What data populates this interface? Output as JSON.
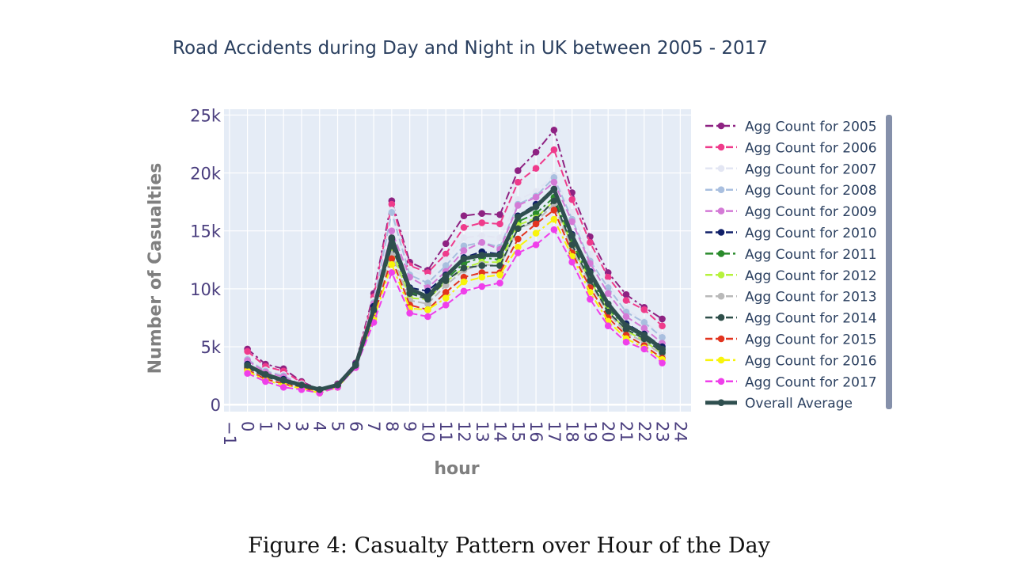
{
  "figure_caption": "Figure 4: Casualty Pattern over Hour of the Day",
  "chart_data": {
    "type": "line",
    "title": "Road Accidents during Day and Night in UK between 2005 - 2017",
    "xlabel": "hour",
    "ylabel": "Number of Casualties",
    "xlim": [
      -1.3,
      24.6
    ],
    "ylim": [
      -600,
      25500
    ],
    "x_ticks": [
      -1,
      0,
      1,
      2,
      3,
      4,
      5,
      6,
      7,
      8,
      9,
      10,
      11,
      12,
      13,
      14,
      15,
      16,
      17,
      18,
      19,
      20,
      21,
      22,
      23,
      24
    ],
    "x_tick_labels": [
      "−1",
      "0",
      "1",
      "2",
      "3",
      "4",
      "5",
      "6",
      "7",
      "8",
      "9",
      "10",
      "11",
      "12",
      "13",
      "14",
      "15",
      "16",
      "17",
      "18",
      "19",
      "20",
      "21",
      "22",
      "23",
      "24"
    ],
    "y_ticks": [
      0,
      5000,
      10000,
      15000,
      20000,
      25000
    ],
    "y_tick_labels": [
      "0",
      "5k",
      "10k",
      "15k",
      "20k",
      "25k"
    ],
    "grid": true,
    "plot_background": "#e5ecf6",
    "legend_position": "right",
    "x": [
      0,
      1,
      2,
      3,
      4,
      5,
      6,
      7,
      8,
      9,
      10,
      11,
      12,
      13,
      14,
      15,
      16,
      17,
      18,
      19,
      20,
      21,
      22,
      23
    ],
    "series": [
      {
        "name": "Agg Count for 2005",
        "color": "#8e2282",
        "dash": "dashdot",
        "values": [
          4800,
          3500,
          3100,
          2000,
          1300,
          1800,
          3600,
          9600,
          17600,
          12300,
          11600,
          13900,
          16300,
          16500,
          16400,
          20200,
          21800,
          23700,
          18300,
          14500,
          11400,
          9500,
          8400,
          7400
        ]
      },
      {
        "name": "Agg Count for 2006",
        "color": "#ef3b8b",
        "dash": "dash",
        "values": [
          4600,
          3300,
          2900,
          1900,
          1300,
          1700,
          3500,
          9300,
          17300,
          12000,
          11400,
          13000,
          15300,
          15700,
          15600,
          19200,
          20400,
          22000,
          17700,
          14000,
          11000,
          9000,
          8200,
          6800
        ]
      },
      {
        "name": "Agg Count for 2007",
        "color": "#e3e6f3",
        "dash": "dash",
        "values": [
          4000,
          3000,
          2600,
          1800,
          1300,
          1700,
          3500,
          9000,
          16800,
          11700,
          11000,
          12500,
          14400,
          14600,
          14400,
          17700,
          18400,
          19800,
          16600,
          13000,
          10500,
          8300,
          7200,
          6000
        ]
      },
      {
        "name": "Agg Count for 2008",
        "color": "#a9bfdf",
        "dash": "dash",
        "values": [
          3900,
          2900,
          2500,
          1700,
          1300,
          1700,
          3500,
          8800,
          16600,
          11200,
          10500,
          12000,
          13700,
          14000,
          13600,
          17300,
          18000,
          19600,
          16000,
          12400,
          10100,
          8000,
          7100,
          5800
        ]
      },
      {
        "name": "Agg Count for 2009",
        "color": "#d47ad6",
        "dash": "dash",
        "values": [
          3800,
          2800,
          2400,
          1700,
          1200,
          1700,
          3500,
          8700,
          15000,
          11000,
          10100,
          11500,
          13300,
          14000,
          13400,
          17200,
          17900,
          19200,
          15800,
          12200,
          9600,
          7600,
          6600,
          5300
        ]
      },
      {
        "name": "Agg Count for 2010",
        "color": "#102068",
        "dash": "dash",
        "values": [
          3500,
          2600,
          2200,
          1600,
          1200,
          1600,
          3500,
          8500,
          14300,
          10100,
          9800,
          11200,
          12700,
          13200,
          13000,
          16300,
          17300,
          18600,
          14700,
          11500,
          8600,
          7000,
          6100,
          5000
        ]
      },
      {
        "name": "Agg Count for 2011",
        "color": "#2a8b2c",
        "dash": "dashdot",
        "values": [
          3300,
          2500,
          2100,
          1600,
          1200,
          1600,
          3400,
          8200,
          13800,
          9700,
          9300,
          10800,
          12200,
          12700,
          12500,
          15800,
          16500,
          17900,
          14000,
          11000,
          8300,
          6700,
          5800,
          4700
        ]
      },
      {
        "name": "Agg Count for 2012",
        "color": "#b6f23c",
        "dash": "dash",
        "values": [
          3200,
          2400,
          2000,
          1500,
          1100,
          1600,
          3400,
          8000,
          13400,
          9200,
          9100,
          10600,
          11800,
          12300,
          12300,
          15500,
          16100,
          17600,
          13700,
          10700,
          8100,
          6400,
          5500,
          4400
        ]
      },
      {
        "name": "Agg Count for 2013",
        "color": "#b9b9b9",
        "dash": "dash",
        "values": [
          3100,
          2300,
          1900,
          1500,
          1100,
          1500,
          3300,
          7800,
          13000,
          9000,
          8700,
          10300,
          11600,
          12100,
          12000,
          15200,
          15800,
          17300,
          13400,
          10500,
          7900,
          6200,
          5400,
          4300
        ]
      },
      {
        "name": "Agg Count for 2014",
        "color": "#2f4f4a",
        "dash": "dash",
        "values": [
          3200,
          2400,
          2000,
          1500,
          1200,
          1600,
          3400,
          8000,
          13700,
          9600,
          9100,
          10700,
          11800,
          12000,
          12000,
          15200,
          16000,
          17600,
          13800,
          10700,
          8000,
          6500,
          5700,
          4500
        ]
      },
      {
        "name": "Agg Count for 2015",
        "color": "#e2341f",
        "dash": "dash",
        "values": [
          3000,
          2200,
          1800,
          1400,
          1100,
          1500,
          3300,
          7600,
          12600,
          8600,
          8200,
          9700,
          11000,
          11400,
          11400,
          14300,
          15600,
          16800,
          13100,
          10100,
          7500,
          6000,
          5100,
          4000
        ]
      },
      {
        "name": "Agg Count for 2016",
        "color": "#f8f40b",
        "dash": "dashdot",
        "values": [
          2900,
          2100,
          1700,
          1400,
          1000,
          1500,
          3200,
          7400,
          12100,
          8300,
          8200,
          9200,
          10600,
          11000,
          11200,
          13600,
          14800,
          16000,
          12800,
          9700,
          7200,
          5700,
          4900,
          3900
        ]
      },
      {
        "name": "Agg Count for 2017",
        "color": "#ef3fea",
        "dash": "dash",
        "values": [
          2700,
          2000,
          1500,
          1300,
          1000,
          1500,
          3200,
          7100,
          11400,
          7900,
          7600,
          8600,
          9800,
          10200,
          10500,
          13100,
          13800,
          15100,
          12300,
          9100,
          6800,
          5400,
          4800,
          3600
        ]
      },
      {
        "name": "Overall Average",
        "color": "#2f4f4f",
        "dash": "solid",
        "width": 5,
        "values": [
          3400,
          2600,
          2100,
          1700,
          1300,
          1700,
          3400,
          8200,
          14400,
          10000,
          9300,
          11100,
          12600,
          12900,
          12900,
          16200,
          17100,
          18600,
          14600,
          11400,
          8700,
          6800,
          6000,
          4800
        ]
      }
    ]
  }
}
